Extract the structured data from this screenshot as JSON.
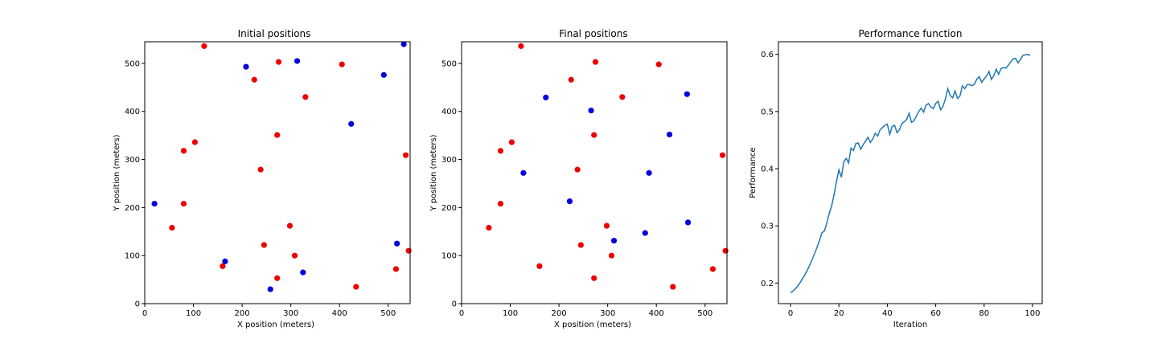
{
  "colors": {
    "red": "#ee0000",
    "blue": "#0000dd",
    "line": "#1f77b4",
    "axes": "#000000"
  },
  "chart_data": [
    {
      "type": "scatter",
      "title": "Initial positions",
      "xlabel": "X position (meters)",
      "ylabel": "Y position (meters)",
      "xlim": [
        0,
        545
      ],
      "ylim": [
        0,
        545
      ],
      "xticks": [
        0,
        100,
        200,
        300,
        400,
        500
      ],
      "yticks": [
        0,
        100,
        200,
        300,
        400,
        500
      ],
      "grid": false,
      "series": [
        {
          "color": "red",
          "points": [
            [
              122,
              536
            ],
            [
              225,
              466
            ],
            [
              275,
              503
            ],
            [
              405,
              498
            ],
            [
              330,
              430
            ],
            [
              272,
              351
            ],
            [
              103,
              336
            ],
            [
              80,
              318
            ],
            [
              238,
              279
            ],
            [
              536,
              309
            ],
            [
              80,
              208
            ],
            [
              56,
              158
            ],
            [
              298,
              162
            ],
            [
              245,
              122
            ],
            [
              308,
              100
            ],
            [
              160,
              78
            ],
            [
              272,
              53
            ],
            [
              516,
              72
            ],
            [
              542,
              110
            ],
            [
              434,
              35
            ]
          ]
        },
        {
          "color": "blue",
          "points": [
            [
              208,
              493
            ],
            [
              313,
              505
            ],
            [
              532,
              540
            ],
            [
              491,
              476
            ],
            [
              424,
              374
            ],
            [
              20,
              208
            ],
            [
              165,
              88
            ],
            [
              258,
              30
            ],
            [
              325,
              65
            ],
            [
              518,
              125
            ]
          ]
        }
      ]
    },
    {
      "type": "scatter",
      "title": "Final positions",
      "xlabel": "X position (meters)",
      "ylabel": "Y position (meters)",
      "xlim": [
        0,
        545
      ],
      "ylim": [
        0,
        545
      ],
      "xticks": [
        0,
        100,
        200,
        300,
        400,
        500
      ],
      "yticks": [
        0,
        100,
        200,
        300,
        400,
        500
      ],
      "grid": false,
      "series": [
        {
          "color": "red",
          "points": [
            [
              122,
              536
            ],
            [
              225,
              466
            ],
            [
              275,
              503
            ],
            [
              405,
              498
            ],
            [
              330,
              430
            ],
            [
              272,
              351
            ],
            [
              103,
              336
            ],
            [
              80,
              318
            ],
            [
              238,
              279
            ],
            [
              536,
              309
            ],
            [
              80,
              208
            ],
            [
              56,
              158
            ],
            [
              298,
              162
            ],
            [
              245,
              122
            ],
            [
              308,
              100
            ],
            [
              160,
              78
            ],
            [
              272,
              53
            ],
            [
              516,
              72
            ],
            [
              542,
              110
            ],
            [
              434,
              35
            ]
          ]
        },
        {
          "color": "blue",
          "points": [
            [
              173,
              429
            ],
            [
              266,
              402
            ],
            [
              463,
              436
            ],
            [
              427,
              352
            ],
            [
              127,
              272
            ],
            [
              385,
              272
            ],
            [
              222,
              213
            ],
            [
              465,
              169
            ],
            [
              313,
              131
            ],
            [
              377,
              147
            ]
          ]
        }
      ]
    },
    {
      "type": "line",
      "title": "Performance function",
      "xlabel": "Iteration",
      "ylabel": "Performance",
      "xlim": [
        -5,
        104
      ],
      "ylim": [
        0.164,
        0.622
      ],
      "xticks": [
        0,
        20,
        40,
        60,
        80,
        100
      ],
      "yticks": [
        0.2,
        0.3,
        0.4,
        0.5,
        0.6
      ],
      "ytick_labels": [
        "0.2",
        "0.3",
        "0.4",
        "0.5",
        "0.6"
      ],
      "grid": false,
      "series": [
        {
          "color": "line",
          "values": [
            0.183,
            0.186,
            0.19,
            0.195,
            0.201,
            0.208,
            0.215,
            0.223,
            0.232,
            0.242,
            0.252,
            0.263,
            0.275,
            0.288,
            0.291,
            0.305,
            0.322,
            0.335,
            0.355,
            0.378,
            0.398,
            0.385,
            0.412,
            0.418,
            0.41,
            0.436,
            0.432,
            0.444,
            0.445,
            0.434,
            0.442,
            0.448,
            0.455,
            0.446,
            0.452,
            0.462,
            0.457,
            0.468,
            0.472,
            0.476,
            0.478,
            0.46,
            0.474,
            0.476,
            0.463,
            0.468,
            0.479,
            0.482,
            0.486,
            0.497,
            0.481,
            0.484,
            0.492,
            0.5,
            0.506,
            0.499,
            0.511,
            0.514,
            0.508,
            0.505,
            0.514,
            0.518,
            0.503,
            0.509,
            0.522,
            0.54,
            0.528,
            0.524,
            0.536,
            0.523,
            0.527,
            0.545,
            0.54,
            0.547,
            0.547,
            0.545,
            0.548,
            0.557,
            0.561,
            0.551,
            0.557,
            0.562,
            0.57,
            0.556,
            0.563,
            0.574,
            0.565,
            0.575,
            0.577,
            0.576,
            0.581,
            0.587,
            0.592,
            0.593,
            0.585,
            0.591,
            0.598,
            0.599,
            0.6,
            0.598
          ]
        }
      ]
    }
  ]
}
